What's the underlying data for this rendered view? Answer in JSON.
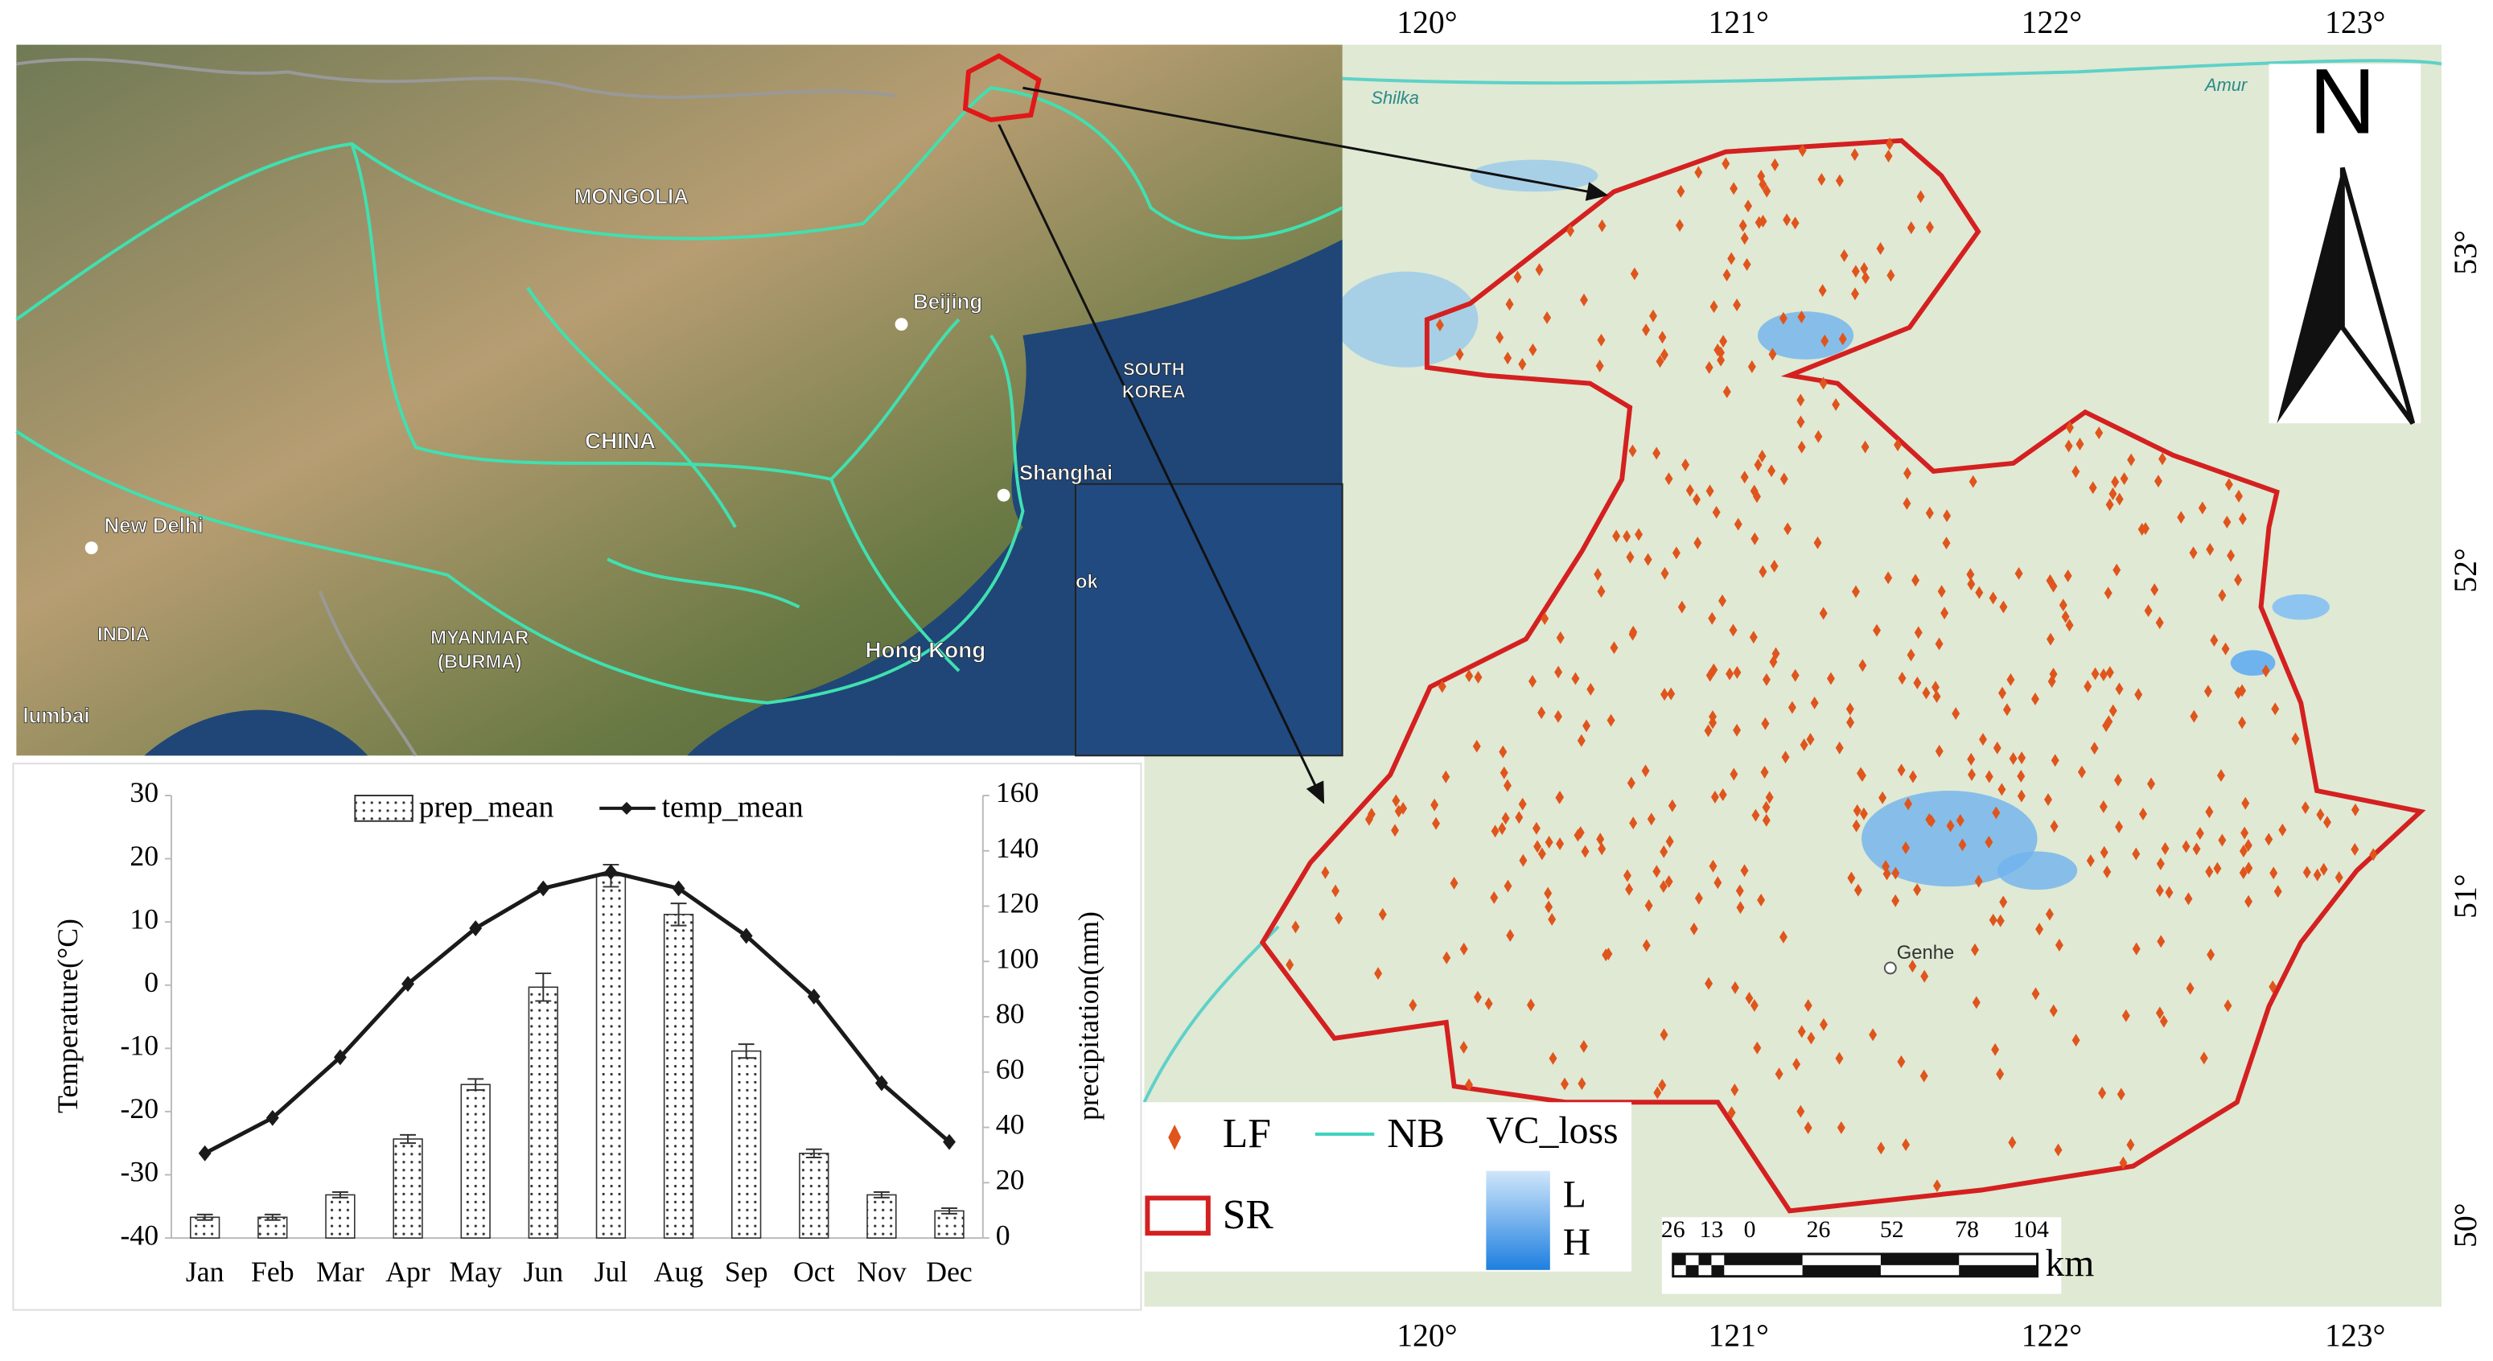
{
  "map": {
    "inset_labels": [
      "MONGOLIA",
      "Beijing",
      "SOUTH",
      "KOREA",
      "CHINA",
      "Shanghai",
      "New Delhi",
      "INDIA",
      "MYANMAR",
      "(BURMA)",
      "Hong Kong",
      "lumbai",
      "ok"
    ],
    "river_labels": [
      "Shilka",
      "Amur"
    ],
    "town": "Genhe",
    "lon_labels": [
      "120°",
      "121°",
      "122°",
      "123°"
    ],
    "lat_labels": [
      "53°",
      "52°",
      "51°",
      "50°"
    ],
    "north": "N",
    "legend": {
      "lf": "LF",
      "nb": "NB",
      "vc": "VC_loss",
      "sr": "SR",
      "low": "L",
      "high": "H"
    },
    "scale_labels": [
      "26",
      "13",
      "0",
      "26",
      "52",
      "78",
      "104"
    ],
    "scale_unit": "km"
  },
  "chart_data": {
    "type": "combo",
    "categories": [
      "Jan",
      "Feb",
      "Mar",
      "Apr",
      "May",
      "Jun",
      "Jul",
      "Aug",
      "Sep",
      "Oct",
      "Nov",
      "Dec"
    ],
    "series": [
      {
        "name": "prep_mean",
        "type": "bar",
        "axis": "y2",
        "color": "#ffffff",
        "values": [
          7.5,
          7.5,
          15.6,
          35.8,
          55.5,
          90.7,
          131,
          117,
          67.6,
          30.6,
          15.6,
          9.8
        ],
        "errors": [
          1,
          1,
          1,
          1.5,
          2,
          5,
          4,
          4,
          2.5,
          1.5,
          1,
          1
        ]
      },
      {
        "name": "temp_mean",
        "type": "line",
        "color": "#1a1a1a",
        "values": [
          -26.6,
          -21,
          -11.4,
          0.2,
          9,
          15.3,
          17.9,
          15.3,
          7.8,
          -1.8,
          -15.5,
          -24.8
        ]
      }
    ],
    "ylabel": "Temperature(°C)",
    "y2label": "precipitation(mm)",
    "ylim": [
      -40,
      30
    ],
    "yticks": [
      -40,
      -30,
      -20,
      -10,
      0,
      10,
      20,
      30
    ],
    "y2lim": [
      0,
      160
    ],
    "y2ticks": [
      0,
      20,
      40,
      60,
      80,
      100,
      120,
      140,
      160
    ]
  }
}
